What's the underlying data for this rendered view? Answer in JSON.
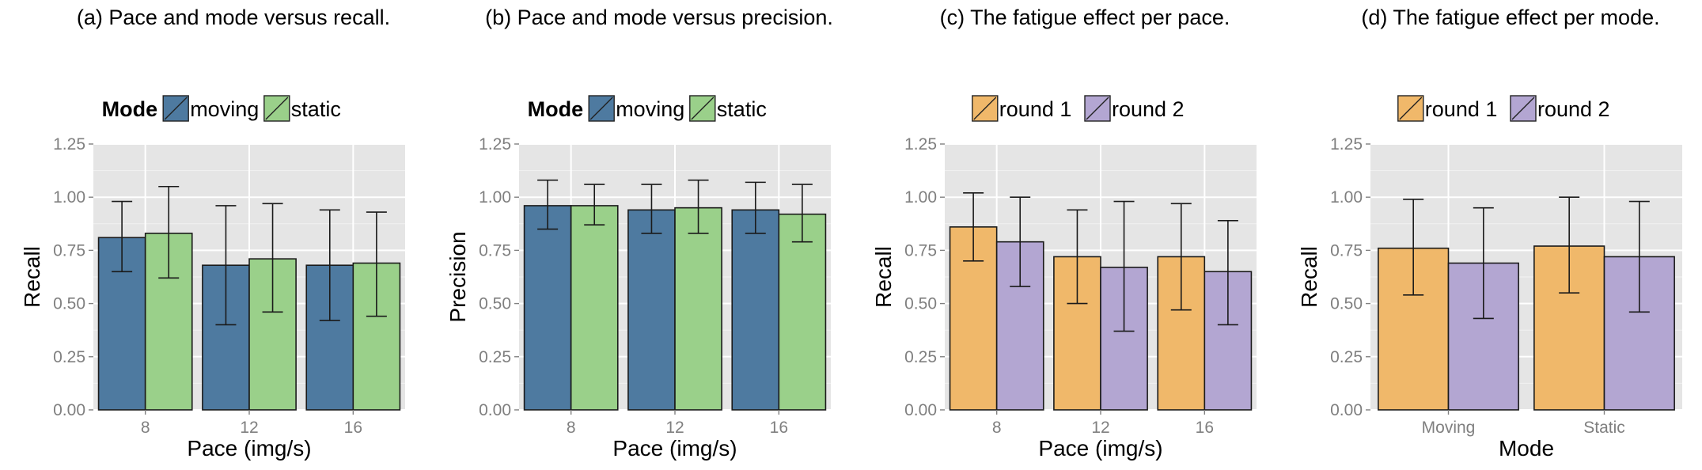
{
  "chart_data": [
    {
      "type": "bar",
      "caption": "(a) Pace and mode versus recall.",
      "legend_title": "Mode",
      "legend_placement": "top",
      "xlabel": "Pace (img/s)",
      "ylabel": "Recall",
      "categories": [
        "8",
        "12",
        "16"
      ],
      "yticks": [
        "0.00",
        "0.25",
        "0.50",
        "0.75",
        "1.00",
        "1.25"
      ],
      "ylim": [
        0,
        1.25
      ],
      "grid": true,
      "series": [
        {
          "name": "moving",
          "color": "#4e7aa0",
          "values": [
            0.81,
            0.68,
            0.68
          ],
          "err_low": [
            0.65,
            0.4,
            0.42
          ],
          "err_high": [
            0.98,
            0.96,
            0.94
          ]
        },
        {
          "name": "static",
          "color": "#9ad08a",
          "values": [
            0.83,
            0.71,
            0.69
          ],
          "err_low": [
            0.62,
            0.46,
            0.44
          ],
          "err_high": [
            1.05,
            0.97,
            0.93
          ]
        }
      ]
    },
    {
      "type": "bar",
      "caption": "(b) Pace and mode versus precision.",
      "legend_title": "Mode",
      "legend_placement": "top",
      "xlabel": "Pace (img/s)",
      "ylabel": "Precision",
      "categories": [
        "8",
        "12",
        "16"
      ],
      "yticks": [
        "0.00",
        "0.25",
        "0.50",
        "0.75",
        "1.00",
        "1.25"
      ],
      "ylim": [
        0,
        1.25
      ],
      "grid": true,
      "series": [
        {
          "name": "moving",
          "color": "#4e7aa0",
          "values": [
            0.96,
            0.94,
            0.94
          ],
          "err_low": [
            0.85,
            0.83,
            0.83
          ],
          "err_high": [
            1.08,
            1.06,
            1.07
          ]
        },
        {
          "name": "static",
          "color": "#9ad08a",
          "values": [
            0.96,
            0.95,
            0.92
          ],
          "err_low": [
            0.87,
            0.83,
            0.79
          ],
          "err_high": [
            1.06,
            1.08,
            1.06
          ]
        }
      ]
    },
    {
      "type": "bar",
      "caption": "(c) The fatigue effect per pace.",
      "legend_title": "",
      "legend_placement": "top",
      "xlabel": "Pace (img/s)",
      "ylabel": "Recall",
      "categories": [
        "8",
        "12",
        "16"
      ],
      "yticks": [
        "0.00",
        "0.25",
        "0.50",
        "0.75",
        "1.00",
        "1.25"
      ],
      "ylim": [
        0,
        1.25
      ],
      "grid": true,
      "series": [
        {
          "name": "round 1",
          "color": "#f0b86a",
          "values": [
            0.86,
            0.72,
            0.72
          ],
          "err_low": [
            0.7,
            0.5,
            0.47
          ],
          "err_high": [
            1.02,
            0.94,
            0.97
          ]
        },
        {
          "name": "round 2",
          "color": "#b3a6d2",
          "values": [
            0.79,
            0.67,
            0.65
          ],
          "err_low": [
            0.58,
            0.37,
            0.4
          ],
          "err_high": [
            1.0,
            0.98,
            0.89
          ]
        }
      ]
    },
    {
      "type": "bar",
      "caption": "(d) The fatigue effect per mode.",
      "legend_title": "",
      "legend_placement": "top",
      "xlabel": "Mode",
      "ylabel": "Recall",
      "categories": [
        "Moving",
        "Static"
      ],
      "yticks": [
        "0.00",
        "0.25",
        "0.50",
        "0.75",
        "1.00",
        "1.25"
      ],
      "ylim": [
        0,
        1.25
      ],
      "grid": true,
      "series": [
        {
          "name": "round 1",
          "color": "#f0b86a",
          "values": [
            0.76,
            0.77
          ],
          "err_low": [
            0.54,
            0.55
          ],
          "err_high": [
            0.99,
            1.0
          ]
        },
        {
          "name": "round 2",
          "color": "#b3a6d2",
          "values": [
            0.69,
            0.72
          ],
          "err_low": [
            0.43,
            0.46
          ],
          "err_high": [
            0.95,
            0.98
          ]
        }
      ]
    }
  ]
}
